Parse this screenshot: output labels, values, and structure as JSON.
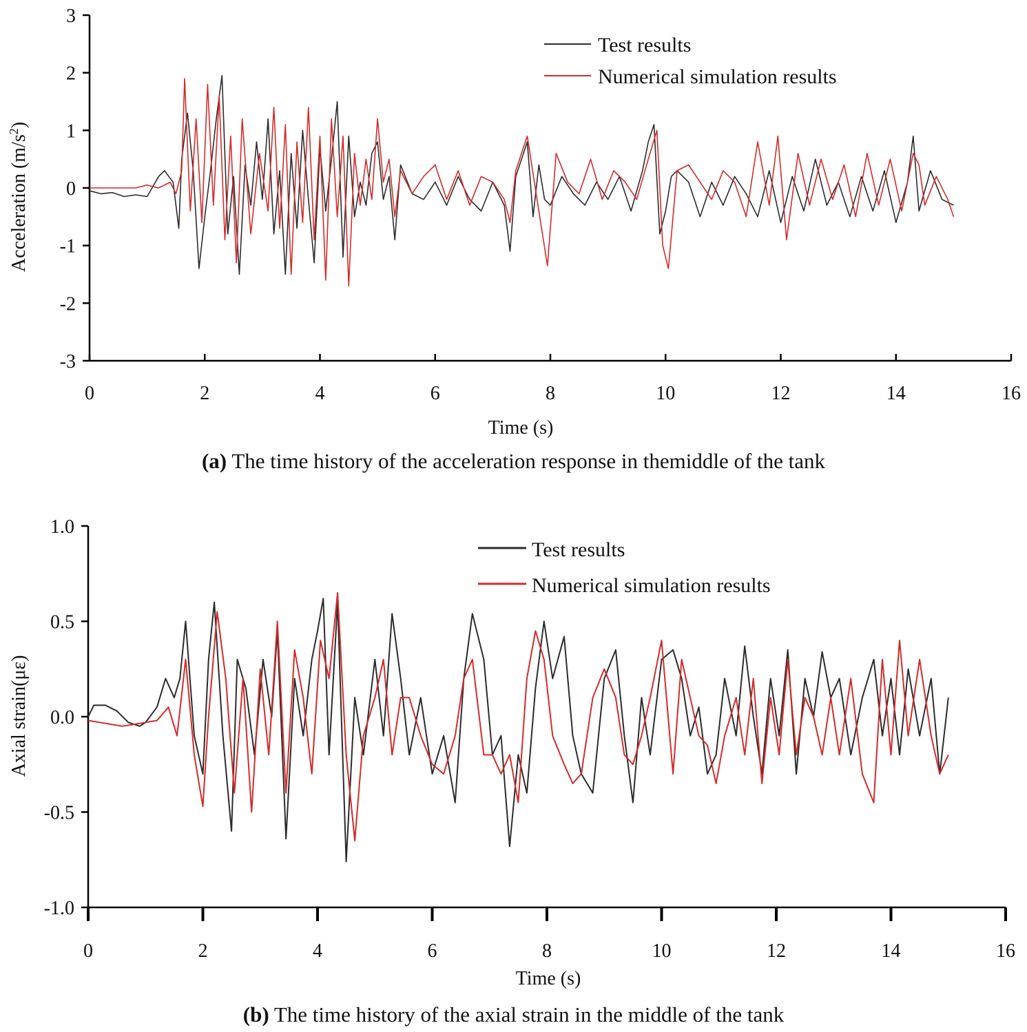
{
  "colors": {
    "test": "#2b2b2b",
    "simulation": "#d42a2a",
    "axis": "#000000"
  },
  "chart_data": [
    {
      "type": "line",
      "xlabel": "Time (s)",
      "ylabel": "Acceleration (m/s",
      "ylabel_sup": "2",
      "ylabel_tail": ")",
      "xlim": [
        0,
        16
      ],
      "ylim": [
        -3,
        3
      ],
      "xticks": [
        0,
        2,
        4,
        6,
        8,
        10,
        12,
        14,
        16
      ],
      "yticks": [
        -3,
        -2,
        -1,
        0,
        1,
        2,
        3
      ],
      "xtick_labels": [
        "0",
        "2",
        "4",
        "6",
        "8",
        "10",
        "12",
        "14",
        "16"
      ],
      "ytick_labels": [
        "-3",
        "-2",
        "-1",
        "0",
        "1",
        "2",
        "3"
      ],
      "legend_position": "top-right",
      "caption_prefix": "(a)",
      "caption_text": "The time history of the acceleration response in themiddle of the tank",
      "series": [
        {
          "name": "Test results",
          "color_key": "test",
          "x": [
            0,
            0.2,
            0.4,
            0.6,
            0.8,
            1.0,
            1.2,
            1.3,
            1.45,
            1.55,
            1.6,
            1.7,
            1.8,
            1.9,
            2.0,
            2.1,
            2.2,
            2.3,
            2.4,
            2.5,
            2.6,
            2.7,
            2.8,
            2.9,
            3.0,
            3.1,
            3.2,
            3.3,
            3.4,
            3.5,
            3.6,
            3.7,
            3.8,
            3.9,
            4.0,
            4.1,
            4.2,
            4.3,
            4.4,
            4.5,
            4.6,
            4.7,
            4.8,
            4.9,
            5.0,
            5.1,
            5.2,
            5.3,
            5.4,
            5.6,
            5.8,
            6.0,
            6.2,
            6.4,
            6.6,
            6.8,
            7.0,
            7.2,
            7.3,
            7.4,
            7.6,
            7.7,
            7.8,
            7.9,
            8.0,
            8.2,
            8.4,
            8.6,
            8.8,
            9.0,
            9.2,
            9.4,
            9.6,
            9.7,
            9.8,
            9.9,
            10.0,
            10.1,
            10.2,
            10.4,
            10.6,
            10.8,
            11.0,
            11.2,
            11.4,
            11.6,
            11.8,
            12.0,
            12.2,
            12.4,
            12.6,
            12.8,
            13.0,
            13.2,
            13.4,
            13.6,
            13.8,
            14.0,
            14.2,
            14.3,
            14.4,
            14.6,
            14.8,
            15.0
          ],
          "y": [
            -0.05,
            -0.1,
            -0.08,
            -0.15,
            -0.12,
            -0.15,
            0.2,
            0.3,
            0.1,
            -0.7,
            0.5,
            1.3,
            0.3,
            -1.4,
            -0.5,
            0.3,
            1.2,
            1.95,
            -0.8,
            0.2,
            -1.5,
            0.4,
            -0.3,
            0.8,
            -0.2,
            1.2,
            -0.8,
            0.3,
            -1.5,
            0.6,
            -0.7,
            1.0,
            -0.2,
            -1.3,
            0.7,
            -0.4,
            0.5,
            1.5,
            -1.2,
            0.9,
            -0.5,
            0.1,
            -0.3,
            0.6,
            0.8,
            -0.2,
            0.2,
            -0.9,
            0.4,
            -0.1,
            -0.2,
            0.1,
            -0.3,
            0.2,
            -0.2,
            -0.4,
            0.1,
            -0.3,
            -1.1,
            0.2,
            0.8,
            -0.5,
            0.4,
            -0.2,
            -0.3,
            0.2,
            -0.1,
            -0.3,
            0.1,
            -0.2,
            0.2,
            -0.4,
            0.3,
            0.8,
            1.1,
            -0.8,
            -0.4,
            0.2,
            0.3,
            0.1,
            -0.5,
            0.1,
            -0.3,
            0.2,
            -0.1,
            -0.5,
            0.3,
            -0.6,
            0.2,
            -0.4,
            0.5,
            -0.3,
            0.1,
            -0.5,
            0.2,
            -0.4,
            0.3,
            -0.6,
            0.1,
            0.9,
            -0.4,
            0.3,
            -0.2,
            -0.3
          ]
        },
        {
          "name": "Numerical simulation results",
          "color_key": "simulation",
          "x": [
            0,
            0.4,
            0.8,
            1.0,
            1.2,
            1.4,
            1.5,
            1.6,
            1.65,
            1.75,
            1.85,
            1.95,
            2.05,
            2.15,
            2.25,
            2.35,
            2.45,
            2.55,
            2.65,
            2.8,
            2.95,
            3.1,
            3.2,
            3.3,
            3.4,
            3.5,
            3.6,
            3.7,
            3.8,
            3.9,
            4.0,
            4.1,
            4.2,
            4.3,
            4.4,
            4.5,
            4.6,
            4.7,
            4.8,
            4.9,
            5.0,
            5.1,
            5.2,
            5.3,
            5.4,
            5.6,
            5.8,
            6.0,
            6.2,
            6.4,
            6.6,
            6.8,
            7.0,
            7.2,
            7.3,
            7.4,
            7.6,
            7.8,
            7.95,
            8.1,
            8.3,
            8.5,
            8.7,
            8.9,
            9.1,
            9.3,
            9.5,
            9.7,
            9.85,
            9.95,
            10.05,
            10.2,
            10.4,
            10.6,
            10.8,
            11.0,
            11.2,
            11.4,
            11.6,
            11.8,
            11.95,
            12.1,
            12.3,
            12.5,
            12.7,
            12.9,
            13.1,
            13.3,
            13.5,
            13.7,
            13.9,
            14.1,
            14.3,
            14.4,
            14.5,
            14.7,
            14.9,
            15.0
          ],
          "y": [
            0.0,
            0.0,
            0.0,
            0.05,
            0.0,
            0.1,
            -0.1,
            0.3,
            1.9,
            -0.4,
            1.2,
            -0.6,
            1.8,
            -0.3,
            1.6,
            -0.9,
            0.9,
            -1.3,
            1.2,
            -0.8,
            0.6,
            -0.4,
            1.4,
            -0.7,
            1.1,
            -1.5,
            0.8,
            -0.6,
            1.4,
            -0.9,
            0.9,
            -1.6,
            1.2,
            -0.5,
            0.9,
            -1.7,
            0.6,
            -0.3,
            0.5,
            -0.2,
            1.2,
            0.1,
            0.5,
            -0.5,
            0.3,
            -0.1,
            0.2,
            0.4,
            -0.2,
            0.3,
            -0.3,
            0.2,
            0.1,
            -0.2,
            -0.6,
            0.3,
            0.9,
            -0.4,
            -1.35,
            0.6,
            0.1,
            -0.1,
            0.5,
            -0.2,
            0.3,
            0.1,
            -0.2,
            0.5,
            1.0,
            -1.0,
            -1.4,
            0.3,
            0.4,
            0.1,
            -0.2,
            0.3,
            0.1,
            -0.5,
            0.8,
            -0.3,
            0.9,
            -0.9,
            0.6,
            -0.3,
            0.5,
            -0.2,
            0.4,
            -0.5,
            0.6,
            -0.3,
            0.5,
            -0.4,
            0.6,
            0.4,
            -0.3,
            0.2,
            -0.2,
            -0.5
          ]
        }
      ]
    },
    {
      "type": "line",
      "xlabel": "Time (s)",
      "ylabel": "Axial strain(με)",
      "xlim": [
        0,
        16
      ],
      "ylim": [
        -1.0,
        1.0
      ],
      "xticks": [
        0,
        2,
        4,
        6,
        8,
        10,
        12,
        14,
        16
      ],
      "yticks": [
        -1.0,
        -0.5,
        0.0,
        0.5,
        1.0
      ],
      "xtick_labels": [
        "0",
        "2",
        "4",
        "6",
        "8",
        "10",
        "12",
        "14",
        "16"
      ],
      "ytick_labels": [
        "-1.0",
        "-0.5",
        "0.0",
        "0.5",
        "1.0"
      ],
      "legend_position": "top-right",
      "caption_prefix": "(b)",
      "caption_text": "The time history of the axial strain in the middle of the tank",
      "series": [
        {
          "name": "Test results",
          "color_key": "test",
          "x": [
            0,
            0.1,
            0.3,
            0.5,
            0.7,
            0.9,
            1.0,
            1.2,
            1.35,
            1.5,
            1.6,
            1.7,
            1.85,
            2.0,
            2.1,
            2.2,
            2.35,
            2.5,
            2.6,
            2.75,
            2.9,
            3.05,
            3.2,
            3.3,
            3.45,
            3.6,
            3.75,
            3.9,
            4.0,
            4.1,
            4.2,
            4.35,
            4.5,
            4.65,
            4.8,
            5.0,
            5.15,
            5.3,
            5.45,
            5.6,
            5.8,
            6.0,
            6.2,
            6.4,
            6.55,
            6.7,
            6.9,
            7.05,
            7.2,
            7.35,
            7.5,
            7.65,
            7.8,
            7.95,
            8.1,
            8.3,
            8.45,
            8.6,
            8.8,
            9.0,
            9.2,
            9.35,
            9.5,
            9.65,
            9.8,
            10.0,
            10.2,
            10.35,
            10.5,
            10.65,
            10.8,
            10.95,
            11.1,
            11.3,
            11.45,
            11.6,
            11.75,
            11.9,
            12.05,
            12.2,
            12.35,
            12.5,
            12.65,
            12.8,
            12.95,
            13.1,
            13.3,
            13.5,
            13.7,
            13.85,
            14.0,
            14.15,
            14.3,
            14.5,
            14.7,
            14.85,
            15.0
          ],
          "y": [
            0.0,
            0.06,
            0.06,
            0.03,
            -0.03,
            -0.05,
            -0.03,
            0.05,
            0.2,
            0.1,
            0.2,
            0.5,
            -0.1,
            -0.3,
            0.3,
            0.6,
            -0.1,
            -0.6,
            0.3,
            0.15,
            -0.2,
            0.3,
            0.0,
            0.45,
            -0.64,
            0.2,
            -0.1,
            0.3,
            0.45,
            0.62,
            -0.2,
            0.6,
            -0.76,
            0.1,
            -0.2,
            0.3,
            -0.1,
            0.54,
            0.2,
            -0.2,
            0.1,
            -0.3,
            -0.1,
            -0.45,
            0.2,
            0.54,
            0.3,
            -0.2,
            -0.1,
            -0.68,
            -0.2,
            -0.4,
            0.15,
            0.5,
            0.2,
            0.42,
            -0.1,
            -0.3,
            -0.4,
            0.2,
            0.35,
            -0.1,
            -0.45,
            0.1,
            -0.2,
            0.3,
            0.35,
            0.2,
            -0.1,
            0.05,
            -0.3,
            -0.2,
            0.2,
            -0.1,
            0.37,
            0.0,
            -0.3,
            0.2,
            -0.1,
            0.35,
            -0.3,
            0.2,
            0.0,
            0.34,
            0.1,
            0.2,
            -0.2,
            0.1,
            0.3,
            -0.1,
            0.2,
            -0.2,
            0.25,
            -0.1,
            0.2,
            -0.3,
            0.1
          ]
        },
        {
          "name": "Numerical simulation results",
          "color_key": "simulation",
          "x": [
            0,
            0.2,
            0.4,
            0.6,
            0.8,
            1.0,
            1.2,
            1.4,
            1.55,
            1.7,
            1.85,
            2.0,
            2.1,
            2.25,
            2.4,
            2.55,
            2.7,
            2.85,
            3.0,
            3.15,
            3.3,
            3.45,
            3.6,
            3.75,
            3.9,
            4.05,
            4.2,
            4.35,
            4.5,
            4.65,
            4.8,
            5.0,
            5.15,
            5.3,
            5.45,
            5.6,
            5.8,
            6.0,
            6.2,
            6.4,
            6.55,
            6.7,
            6.9,
            7.05,
            7.2,
            7.35,
            7.5,
            7.65,
            7.8,
            7.95,
            8.1,
            8.3,
            8.45,
            8.6,
            8.8,
            9.0,
            9.2,
            9.35,
            9.5,
            9.65,
            9.8,
            10.0,
            10.2,
            10.35,
            10.5,
            10.65,
            10.8,
            10.95,
            11.1,
            11.3,
            11.45,
            11.6,
            11.75,
            11.9,
            12.05,
            12.2,
            12.35,
            12.5,
            12.65,
            12.8,
            12.95,
            13.1,
            13.3,
            13.5,
            13.7,
            13.85,
            14.0,
            14.15,
            14.3,
            14.5,
            14.7,
            14.85,
            15.0
          ],
          "y": [
            -0.02,
            -0.03,
            -0.04,
            -0.05,
            -0.04,
            -0.03,
            -0.02,
            0.05,
            -0.1,
            0.3,
            -0.2,
            -0.47,
            0.0,
            0.55,
            0.2,
            -0.4,
            0.2,
            -0.5,
            0.25,
            -0.2,
            0.5,
            -0.4,
            0.35,
            0.1,
            -0.3,
            0.4,
            0.2,
            0.65,
            -0.2,
            -0.65,
            -0.1,
            0.1,
            0.3,
            -0.2,
            0.1,
            0.1,
            -0.1,
            -0.25,
            -0.3,
            -0.1,
            0.2,
            0.3,
            -0.2,
            -0.2,
            -0.3,
            -0.2,
            -0.45,
            0.2,
            0.45,
            0.3,
            -0.1,
            -0.25,
            -0.35,
            -0.3,
            0.1,
            0.25,
            0.1,
            -0.2,
            -0.25,
            -0.1,
            0.1,
            0.4,
            -0.3,
            0.3,
            0.1,
            -0.1,
            -0.15,
            -0.35,
            -0.1,
            0.1,
            -0.2,
            0.2,
            -0.35,
            0.1,
            -0.2,
            0.3,
            -0.2,
            0.1,
            0.0,
            -0.2,
            0.1,
            -0.2,
            0.2,
            -0.3,
            -0.45,
            0.3,
            -0.2,
            0.4,
            -0.1,
            0.3,
            -0.1,
            -0.3,
            -0.2
          ]
        }
      ]
    }
  ]
}
